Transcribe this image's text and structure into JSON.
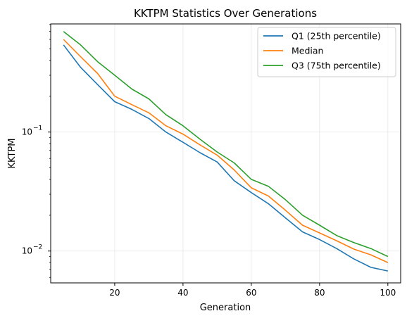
{
  "chart_data": {
    "type": "line",
    "title": "KKTPM Statistics Over Generations",
    "xlabel": "Generation",
    "ylabel": "KKTPM",
    "xlim": [
      1.25,
      103.75
    ],
    "ylim": [
      0.0054,
      0.81
    ],
    "yscale": "log",
    "grid": true,
    "legend_position": "upper right",
    "x_ticks": [
      20,
      40,
      60,
      80,
      100
    ],
    "y_ticks": [
      {
        "value": 0.1,
        "label": "10",
        "exp": "−1"
      },
      {
        "value": 0.01,
        "label": "10",
        "exp": "−2"
      }
    ],
    "x": [
      5,
      10,
      15,
      20,
      25,
      30,
      35,
      40,
      45,
      50,
      55,
      60,
      65,
      70,
      75,
      80,
      85,
      90,
      95,
      100
    ],
    "series": [
      {
        "name": "Q1 (25th percentile)",
        "color": "#1f77b4",
        "values": [
          0.54,
          0.35,
          0.25,
          0.18,
          0.155,
          0.13,
          0.1,
          0.082,
          0.067,
          0.056,
          0.039,
          0.031,
          0.025,
          0.019,
          0.0145,
          0.0125,
          0.0105,
          0.0086,
          0.0073,
          0.0068
        ]
      },
      {
        "name": "Median",
        "color": "#ff7f0e",
        "values": [
          0.6,
          0.43,
          0.31,
          0.2,
          0.17,
          0.145,
          0.113,
          0.096,
          0.078,
          0.064,
          0.048,
          0.034,
          0.029,
          0.022,
          0.0165,
          0.0142,
          0.0122,
          0.0104,
          0.0093,
          0.008
        ]
      },
      {
        "name": "Q3 (75th percentile)",
        "color": "#2ca02c",
        "values": [
          0.7,
          0.54,
          0.39,
          0.3,
          0.23,
          0.19,
          0.14,
          0.113,
          0.087,
          0.068,
          0.055,
          0.04,
          0.035,
          0.027,
          0.02,
          0.0165,
          0.0135,
          0.0118,
          0.0105,
          0.009
        ]
      }
    ]
  }
}
